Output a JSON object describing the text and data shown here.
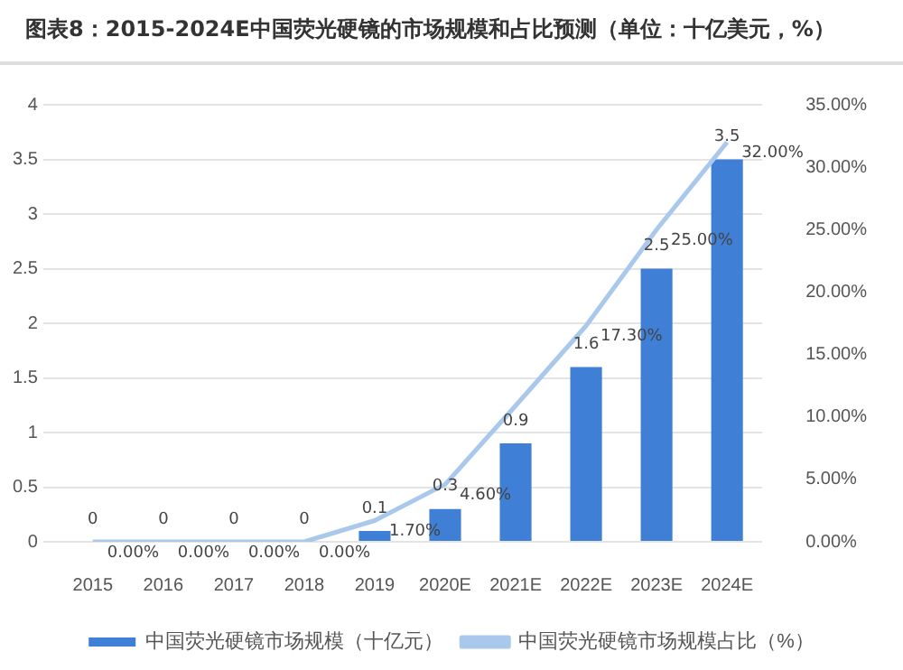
{
  "chart_data": {
    "type": "bar",
    "title": "图表8：2015-2024E中国荧光硬镜的市场规模和占比预测（单位：十亿美元，%）",
    "categories": [
      "2015",
      "2016",
      "2017",
      "2018",
      "2019",
      "2020E",
      "2021E",
      "2022E",
      "2023E",
      "2024E"
    ],
    "series": [
      {
        "name": "中国荧光硬镜市场规模（十亿元）",
        "color": "#3f7fd6",
        "values": [
          0,
          0,
          0,
          0,
          0.1,
          0.3,
          0.9,
          1.6,
          2.5,
          3.5
        ],
        "value_labels": [
          "0",
          "0",
          "0",
          "0",
          "0.1",
          "0.3",
          "0.9",
          "1.6",
          "2.5",
          "3.5"
        ]
      },
      {
        "name": "中国荧光硬镜市场规模占比（%）",
        "type": "line",
        "axis": "y2",
        "color": "#a9c8ec",
        "values": [
          0,
          0,
          0,
          0,
          1.7,
          4.6,
          10.9,
          17.3,
          25,
          32
        ],
        "value_labels": [
          "0.00%",
          "0.00%",
          "0.00%",
          "0.00%",
          "1.70%",
          "4.60%",
          null,
          "17.30%",
          "25.00%",
          "32.00%"
        ]
      }
    ],
    "ylim": [
      0,
      4
    ],
    "yticks": [
      0,
      0.5,
      1,
      1.5,
      2,
      2.5,
      3,
      3.5,
      4
    ],
    "y2lim": [
      0,
      35
    ],
    "y2ticks": [
      {
        "value": 0,
        "label": "0.00%"
      },
      {
        "value": 5,
        "label": "5.00%"
      },
      {
        "value": 10,
        "label": "10.00%"
      },
      {
        "value": 15,
        "label": "15.00%"
      },
      {
        "value": 20,
        "label": "20.00%"
      },
      {
        "value": 25,
        "label": "25.00%"
      },
      {
        "value": 30,
        "label": "30.00%"
      },
      {
        "value": 35,
        "label": "35.00%"
      }
    ],
    "grid": "y",
    "legend": "bottom",
    "marker": "none"
  }
}
